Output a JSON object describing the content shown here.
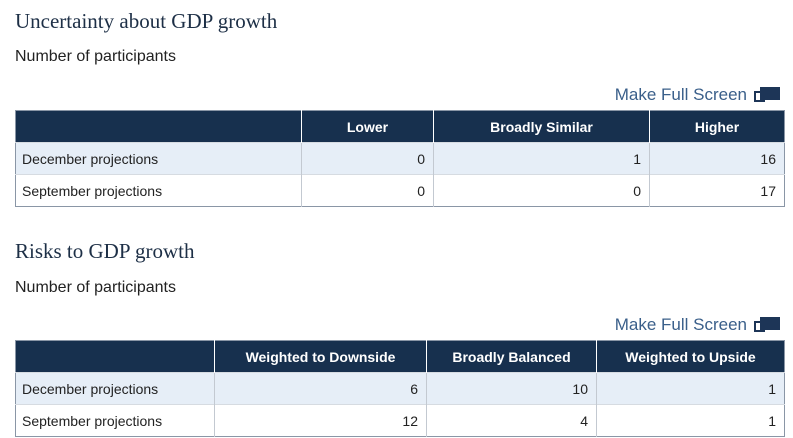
{
  "uncertainty": {
    "title": "Uncertainty about GDP growth",
    "subtitle": "Number of participants",
    "full_screen_label": "Make Full Screen",
    "columns": [
      "Lower",
      "Broadly Similar",
      "Higher"
    ],
    "rows": [
      {
        "label": "December projections",
        "values": [
          "0",
          "1",
          "16"
        ]
      },
      {
        "label": "September projections",
        "values": [
          "0",
          "0",
          "17"
        ]
      }
    ]
  },
  "risks": {
    "title": "Risks to GDP growth",
    "subtitle": "Number of participants",
    "full_screen_label": "Make Full Screen",
    "columns": [
      "Weighted to Downside",
      "Broadly Balanced",
      "Weighted to Upside"
    ],
    "rows": [
      {
        "label": "December projections",
        "values": [
          "6",
          "10",
          "1"
        ]
      },
      {
        "label": "September projections",
        "values": [
          "12",
          "4",
          "1"
        ]
      }
    ]
  },
  "icons": {
    "full_screen": "full-screen-icon"
  },
  "colors": {
    "header_bg": "#17304e",
    "row_shade": "#e6eef7",
    "link": "#3a5f8a"
  }
}
